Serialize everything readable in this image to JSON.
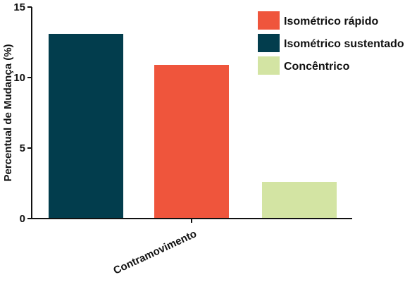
{
  "chart_data": {
    "type": "bar",
    "categories": [
      "Contramovimento"
    ],
    "series": [
      {
        "name": "Isométrico sustentado",
        "values": [
          13.1
        ],
        "color": "#023d4d"
      },
      {
        "name": "Isométrico rápido",
        "values": [
          10.9
        ],
        "color": "#ef553c"
      },
      {
        "name": "Concêntrico",
        "values": [
          2.6
        ],
        "color": "#d3e4a3"
      }
    ],
    "legend_order": [
      "Isométrico rápido",
      "Isométrico sustentado",
      "Concêntrico"
    ],
    "xlabel": "Contramovimento",
    "ylabel": "Percentual de Mudança (%)",
    "ylim": [
      0,
      15
    ],
    "yticks": [
      "0",
      "5",
      "10",
      "15"
    ],
    "grid": false,
    "legend_position": "top-right"
  }
}
